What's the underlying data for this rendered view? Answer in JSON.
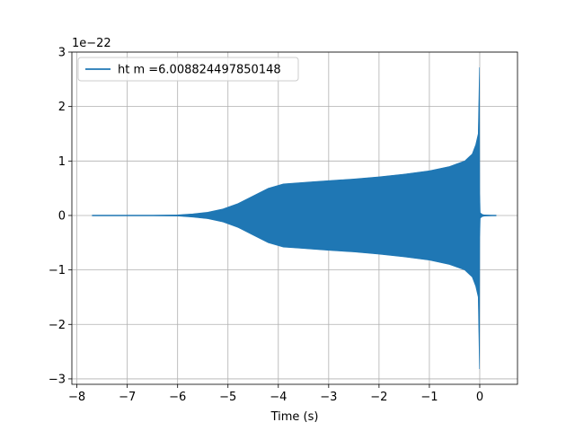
{
  "chart_data": {
    "type": "line",
    "title": "",
    "xlabel": "Time (s)",
    "ylabel": "",
    "y_offset_label": "1e−22",
    "xlim": [
      -8.1,
      0.75
    ],
    "ylim": [
      -3.1,
      3.0
    ],
    "grid": true,
    "legend_position": "upper left",
    "x_ticks": [
      -8,
      -7,
      -6,
      -5,
      -4,
      -3,
      -2,
      -1,
      0
    ],
    "x_tick_labels": [
      "−8",
      "−7",
      "−6",
      "−5",
      "−4",
      "−3",
      "−2",
      "−1",
      "0"
    ],
    "y_ticks": [
      -3,
      -2,
      -1,
      0,
      1,
      2,
      3
    ],
    "y_tick_labels": [
      "−3",
      "−2",
      "−1",
      "0",
      "1",
      "2",
      "3"
    ],
    "series": [
      {
        "name": "ht m =6.008824497850148",
        "color": "#1f77b4",
        "envelope": {
          "x": [
            -7.7,
            -6.5,
            -6.0,
            -5.7,
            -5.4,
            -5.1,
            -4.8,
            -4.5,
            -4.2,
            -3.9,
            -3.6,
            -3.3,
            -3.0,
            -2.5,
            -2.0,
            -1.5,
            -1.0,
            -0.6,
            -0.3,
            -0.15,
            -0.08,
            -0.03,
            -0.005,
            0.0,
            0.01,
            0.05,
            0.1,
            0.2,
            0.33
          ],
          "upper": [
            0.0,
            0.003,
            0.01,
            0.03,
            0.06,
            0.12,
            0.22,
            0.36,
            0.5,
            0.58,
            0.6,
            0.62,
            0.64,
            0.67,
            0.71,
            0.76,
            0.82,
            0.9,
            1.0,
            1.13,
            1.3,
            1.5,
            2.72,
            0.4,
            0.05,
            0.02,
            0.01,
            0.005,
            0.0
          ],
          "lower": [
            0.0,
            -0.003,
            -0.01,
            -0.03,
            -0.06,
            -0.12,
            -0.22,
            -0.36,
            -0.5,
            -0.58,
            -0.6,
            -0.62,
            -0.64,
            -0.67,
            -0.71,
            -0.76,
            -0.82,
            -0.9,
            -1.0,
            -1.13,
            -1.3,
            -1.5,
            -2.82,
            -0.4,
            -0.05,
            -0.02,
            -0.01,
            -0.005,
            0.0
          ]
        }
      }
    ]
  }
}
